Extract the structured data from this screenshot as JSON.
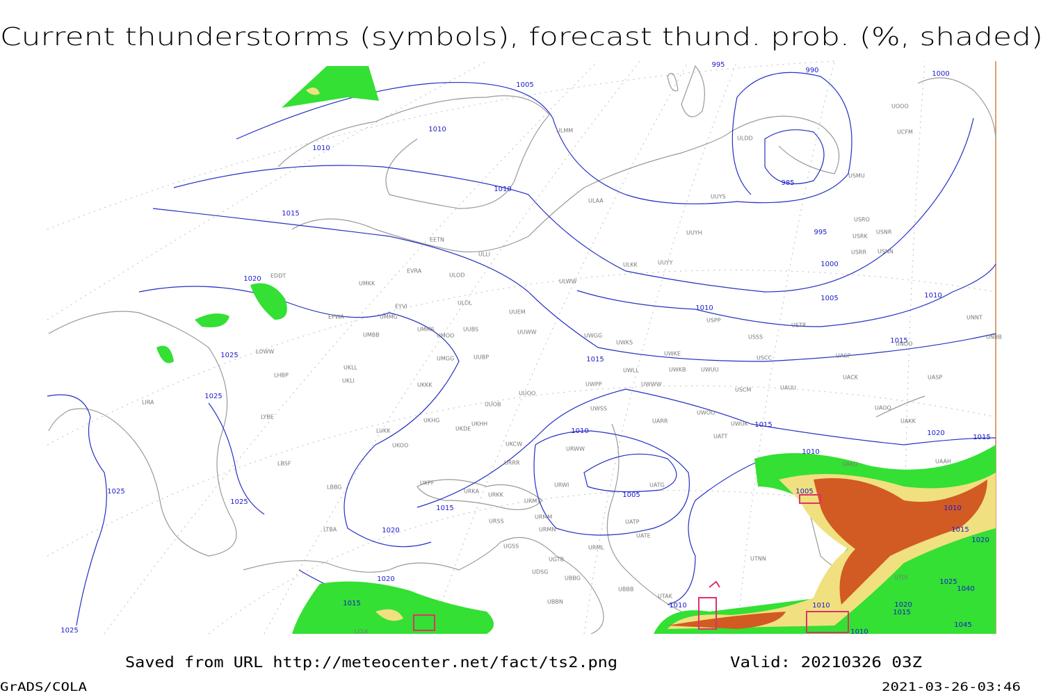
{
  "header": {
    "title": "Current thunderstorms (symbols), forecast thund. prob. (%, shaded)"
  },
  "map": {
    "isobar_labels": [
      995,
      990,
      1000,
      1005,
      1010,
      1010,
      985,
      1010,
      1015,
      995,
      1000,
      1020,
      1005,
      1010,
      1010,
      1015,
      1025,
      1015,
      1025,
      1015,
      1010,
      1020,
      1015,
      1010,
      1005,
      1005,
      1025,
      1025,
      1015,
      1010,
      1020,
      1015,
      1020,
      1020,
      1025,
      1040,
      1015,
      1010,
      1010,
      1020,
      1015,
      1045,
      1010,
      1025
    ],
    "stations": [
      "ULDD",
      "USMU",
      "UUYS",
      "ULAA",
      "UUYH",
      "USRO",
      "USRK",
      "USNR",
      "USRR",
      "USNN",
      "ULKK",
      "UUYY",
      "ULWW",
      "EETN",
      "ULLI",
      "EVRA",
      "ULOD",
      "UMKK",
      "EDDT",
      "EYVI",
      "ULOL",
      "UUEM",
      "EPWA",
      "UMMG",
      "UMMS",
      "UUBS",
      "UMOO",
      "UUWW",
      "UMBB",
      "UWGG",
      "UWKS",
      "USPP",
      "USTR",
      "USSS",
      "UNNT",
      "UNBB",
      "UNOO",
      "LOWW",
      "UUBP",
      "UMGG",
      "UWKE",
      "UWKB",
      "UWUU",
      "USCC",
      "UACP",
      "UKLL",
      "UKLI",
      "LHBP",
      "UWLL",
      "UACK",
      "UASP",
      "UKKK",
      "UWPP",
      "UWWW",
      "UUOO",
      "USCM",
      "UAUU",
      "LIRA",
      "UUOB",
      "UWSS",
      "UAOO",
      "LYBE",
      "UKHH",
      "UKHG",
      "UARR",
      "UWOO",
      "UWUK",
      "UAKK",
      "UKDE",
      "LUKK",
      "UKOO",
      "UATT",
      "UKCW",
      "URWW",
      "LBSF",
      "UAKD",
      "UAAH",
      "URRR",
      "UKFF",
      "URWI",
      "UATG",
      "URKA",
      "URKK",
      "LBBG",
      "URMT",
      "URSS",
      "URMM",
      "UATP",
      "LTBA",
      "URMN",
      "UATE",
      "UGSS",
      "URML",
      "UGTB",
      "UTNN",
      "UDSG",
      "UBBG",
      "UTDI",
      "UBBB",
      "UTAK",
      "UBBN",
      "LCLK",
      "ULMM",
      "UOOO",
      "UCFM"
    ]
  },
  "footer": {
    "source": "Saved from URL http://meteocenter.net/fact/ts2.png",
    "valid": "Valid: 20210326 03Z",
    "software": "GrADS/COLA",
    "timestamp": "2021-03-26-03:46"
  }
}
